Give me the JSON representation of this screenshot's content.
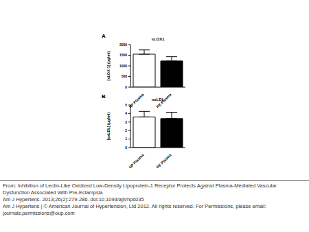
{
  "chart_data": [
    {
      "type": "bar",
      "panel": "A",
      "title": "sLOX1",
      "y_label": "[sLOX-1] (pg/ml)",
      "categories": [
        "NP Plasma",
        "PE Plasma"
      ],
      "values": [
        1550,
        1230
      ],
      "error": [
        200,
        200
      ],
      "colors": [
        "#ffffff",
        "#000000"
      ],
      "ylim": [
        0,
        2000
      ],
      "yticks": [
        0,
        500,
        1000,
        1500,
        2000
      ],
      "grid": false
    },
    {
      "type": "bar",
      "panel": "B",
      "title": "oxLDL",
      "y_label": "[oxLDL] (µg/ml)",
      "categories": [
        "NP Plasma",
        "PE Plasma"
      ],
      "values": [
        3.6,
        3.4
      ],
      "error": [
        0.65,
        0.75
      ],
      "colors": [
        "#ffffff",
        "#000000"
      ],
      "ylim": [
        0,
        5
      ],
      "yticks": [
        0,
        1,
        2,
        3,
        4,
        5
      ],
      "grid": false
    }
  ],
  "caption": {
    "source": "From: Inhibition of Lectin-Like Oxidized Low-Density Lipoprotein-1 Receptor Protects Against Plasma-Mediated Vascular Dysfunction Associated With Pre-Eclampsia",
    "citation": "Am J Hypertens. 2013;26(2):279-286. doi:10.1093/ajh/hps035",
    "rights": "Am J Hypertens | © American Journal of Hypertension, Ltd 2012. All rights reserved. For Permissions, please email: journals.permissions@oup.com"
  }
}
